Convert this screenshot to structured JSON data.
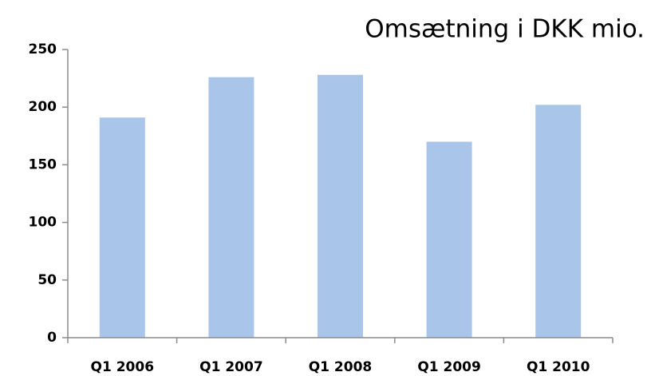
{
  "chart_data": {
    "type": "bar",
    "title": "Omsætning i DKK mio.",
    "categories": [
      "Q1 2006",
      "Q1 2007",
      "Q1 2008",
      "Q1 2009",
      "Q1 2010"
    ],
    "values": [
      191,
      226,
      228,
      170,
      202
    ],
    "color": "#a9c5ea",
    "ylim": [
      0,
      250
    ],
    "yticks": [
      0,
      50,
      100,
      150,
      200,
      250
    ],
    "grid": false
  }
}
